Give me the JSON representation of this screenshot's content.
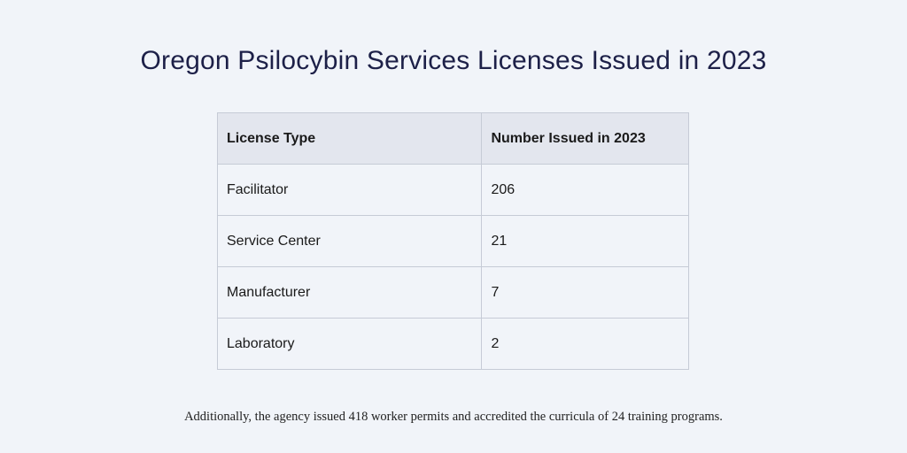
{
  "title": "Oregon Psilocybin Services Licenses Issued in 2023",
  "table": {
    "headers": [
      "License Type",
      "Number Issued in 2023"
    ],
    "rows": [
      [
        "Facilitator",
        "206"
      ],
      [
        "Service Center",
        "21"
      ],
      [
        "Manufacturer",
        "7"
      ],
      [
        "Laboratory",
        "2"
      ]
    ]
  },
  "footnote": "Additionally, the agency issued 418 worker permits and accredited the curricula of 24 training programs.",
  "colors": {
    "background": "#f1f4f9",
    "title": "#1d2048",
    "header_background": "#e3e6ee",
    "border": "#c6cbd6"
  }
}
